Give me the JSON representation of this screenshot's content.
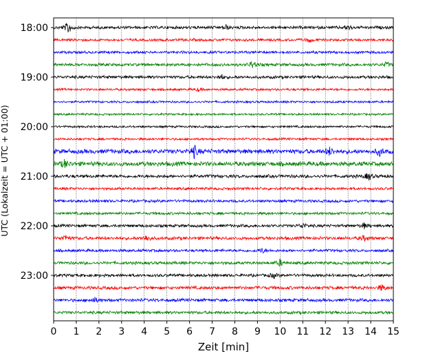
{
  "chart_data": {
    "type": "line",
    "xlabel": "Zeit  [min]",
    "ylabel": "UTC (Lokalzeit = UTC + 01:00)",
    "xlim": [
      0,
      15
    ],
    "x_ticks": [
      "0",
      "1",
      "2",
      "3",
      "4",
      "5",
      "6",
      "7",
      "8",
      "9",
      "10",
      "11",
      "12",
      "13",
      "14",
      "15"
    ],
    "y_ticks": [
      "18:00",
      "19:00",
      "20:00",
      "21:00",
      "22:00",
      "23:00"
    ],
    "row_interval_min": 15,
    "grid": "vertical dotted at each minute",
    "series_colors": [
      "#000000",
      "#ff0000",
      "#0000ff",
      "#008000"
    ],
    "traces": [
      {
        "time": "18:00",
        "color": "#000000",
        "amplitude": 0.25,
        "bursts": [
          [
            0.65,
            1.0
          ],
          [
            7.6,
            0.4
          ],
          [
            13.0,
            0.4
          ]
        ]
      },
      {
        "time": "18:15",
        "color": "#ff0000",
        "amplitude": 0.2,
        "bursts": [
          [
            11.3,
            0.3
          ]
        ]
      },
      {
        "time": "18:30",
        "color": "#0000ff",
        "amplitude": 0.2,
        "bursts": []
      },
      {
        "time": "18:45",
        "color": "#008000",
        "amplitude": 0.25,
        "bursts": [
          [
            8.8,
            0.6
          ],
          [
            14.7,
            0.4
          ]
        ]
      },
      {
        "time": "19:00",
        "color": "#000000",
        "amplitude": 0.25,
        "bursts": [
          [
            7.4,
            0.4
          ]
        ]
      },
      {
        "time": "19:15",
        "color": "#ff0000",
        "amplitude": 0.15,
        "bursts": [
          [
            6.4,
            0.25
          ]
        ]
      },
      {
        "time": "19:30",
        "color": "#0000ff",
        "amplitude": 0.12,
        "bursts": []
      },
      {
        "time": "19:45",
        "color": "#008000",
        "amplitude": 0.1,
        "bursts": []
      },
      {
        "time": "20:00",
        "color": "#000000",
        "amplitude": 0.12,
        "bursts": []
      },
      {
        "time": "20:15",
        "color": "#ff0000",
        "amplitude": 0.15,
        "bursts": []
      },
      {
        "time": "20:30",
        "color": "#0000ff",
        "amplitude": 0.5,
        "bursts": [
          [
            6.2,
            1.0
          ],
          [
            12.2,
            0.6
          ],
          [
            14.4,
            0.6
          ]
        ]
      },
      {
        "time": "20:45",
        "color": "#008000",
        "amplitude": 0.5,
        "bursts": [
          [
            0.5,
            0.6
          ]
        ]
      },
      {
        "time": "21:00",
        "color": "#000000",
        "amplitude": 0.3,
        "bursts": [
          [
            13.9,
            0.6
          ]
        ]
      },
      {
        "time": "21:15",
        "color": "#ff0000",
        "amplitude": 0.2,
        "bursts": []
      },
      {
        "time": "21:30",
        "color": "#0000ff",
        "amplitude": 0.22,
        "bursts": []
      },
      {
        "time": "21:45",
        "color": "#008000",
        "amplitude": 0.2,
        "bursts": []
      },
      {
        "time": "22:00",
        "color": "#000000",
        "amplitude": 0.25,
        "bursts": [
          [
            11.0,
            0.4
          ],
          [
            13.7,
            0.4
          ]
        ]
      },
      {
        "time": "22:15",
        "color": "#ff0000",
        "amplitude": 0.3,
        "bursts": [
          [
            0.5,
            0.5
          ],
          [
            4.1,
            0.5
          ],
          [
            13.7,
            0.4
          ]
        ]
      },
      {
        "time": "22:30",
        "color": "#0000ff",
        "amplitude": 0.22,
        "bursts": [
          [
            9.2,
            0.4
          ]
        ]
      },
      {
        "time": "22:45",
        "color": "#008000",
        "amplitude": 0.25,
        "bursts": [
          [
            10.0,
            0.5
          ]
        ]
      },
      {
        "time": "23:00",
        "color": "#000000",
        "amplitude": 0.25,
        "bursts": [
          [
            9.7,
            0.4
          ]
        ]
      },
      {
        "time": "23:15",
        "color": "#ff0000",
        "amplitude": 0.3,
        "bursts": [
          [
            14.5,
            0.5
          ]
        ]
      },
      {
        "time": "23:30",
        "color": "#0000ff",
        "amplitude": 0.28,
        "bursts": [
          [
            1.8,
            0.4
          ]
        ]
      },
      {
        "time": "23:45",
        "color": "#008000",
        "amplitude": 0.25,
        "bursts": []
      }
    ]
  }
}
